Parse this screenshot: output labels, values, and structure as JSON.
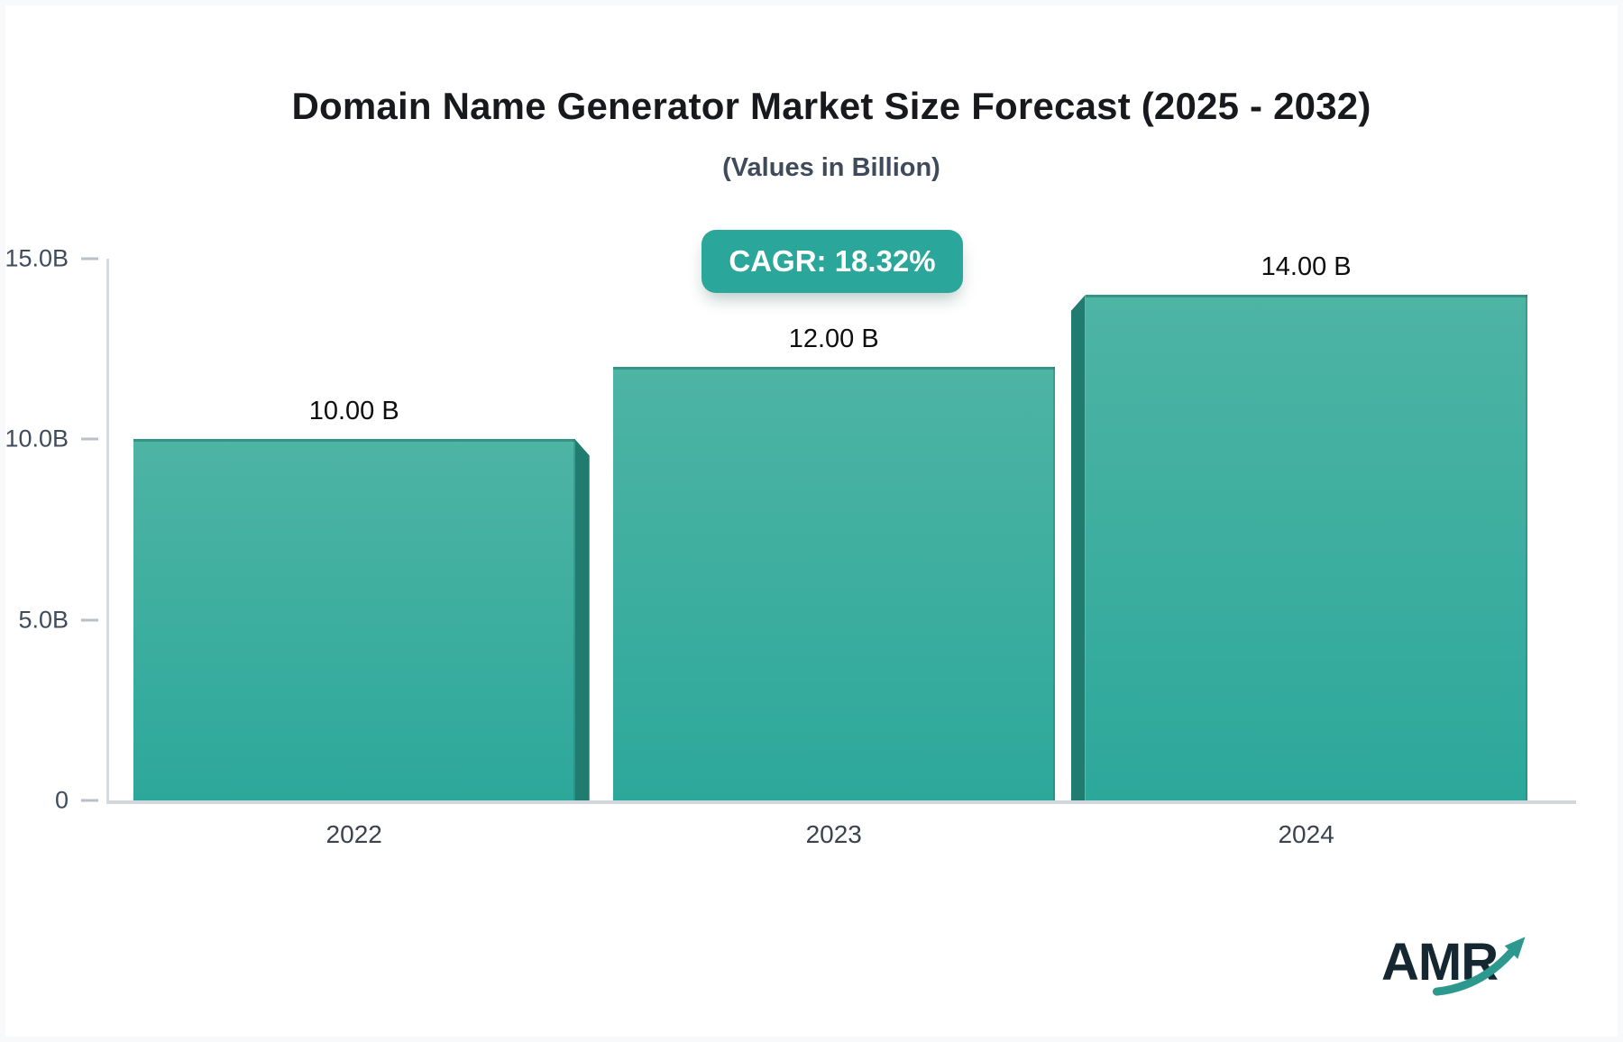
{
  "header": {
    "title": "Domain Name Generator Market Size Forecast (2025 - 2032)",
    "subtitle": "(Values in Billion)"
  },
  "badge": {
    "label": "CAGR: 18.32%",
    "cagr_percent": 18.32,
    "bg_color": "#2aa79a",
    "text_color": "#ffffff"
  },
  "chart_data": {
    "type": "bar",
    "title": "Domain Name Generator Market Size Forecast (2025 - 2032)",
    "subtitle": "(Values in Billion)",
    "categories": [
      "2022",
      "2023",
      "2024"
    ],
    "values": [
      10,
      12,
      14
    ],
    "value_labels": [
      "10.00 B",
      "12.00 B",
      "14.00 B"
    ],
    "xlabel": "",
    "ylabel": "",
    "ylim": [
      0,
      15
    ],
    "y_ticks": [
      {
        "value": 15,
        "label": "15.0B"
      },
      {
        "value": 10,
        "label": "10.0B"
      },
      {
        "value": 5,
        "label": "5.0B"
      },
      {
        "value": 0,
        "label": "0"
      }
    ],
    "grid": false,
    "legend": "none",
    "bar_3d_sides": [
      "right",
      "none",
      "left"
    ],
    "colors": {
      "bar_top": "#4eb4a4",
      "bar_bottom": "#2ca89b",
      "bar_side": "#217c70",
      "axis_line": "#d2d7db",
      "tick_text": "#3f4c5c"
    }
  },
  "logo": {
    "text": "AMR",
    "icon": "growth-arrow-icon",
    "text_color": "#152731",
    "arrow_color": "#2d998e"
  }
}
